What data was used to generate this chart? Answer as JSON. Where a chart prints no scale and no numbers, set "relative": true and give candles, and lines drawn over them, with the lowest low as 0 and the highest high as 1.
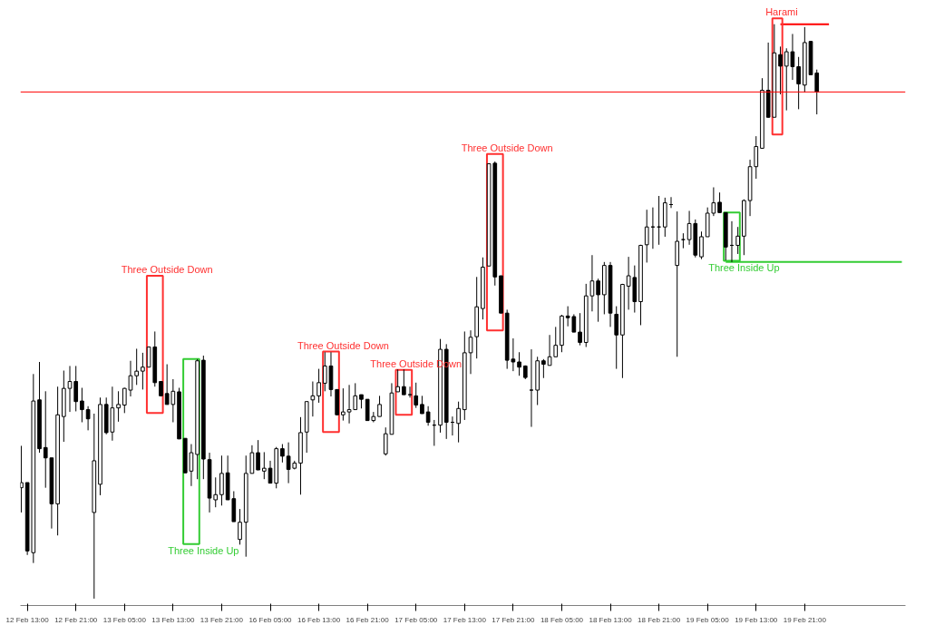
{
  "chart_data": {
    "type": "candlestick",
    "relative": true,
    "categories": [
      null,
      "12 Feb 13:00",
      null,
      null,
      null,
      null,
      null,
      null,
      null,
      "12 Feb 21:00",
      null,
      null,
      null,
      null,
      null,
      null,
      null,
      "13 Feb 05:00",
      null,
      null,
      null,
      null,
      null,
      null,
      null,
      "13 Feb 13:00",
      null,
      null,
      null,
      null,
      null,
      null,
      null,
      "13 Feb 21:00",
      null,
      null,
      null,
      null,
      null,
      null,
      null,
      "16 Feb 05:00",
      null,
      null,
      null,
      null,
      null,
      null,
      null,
      "16 Feb 13:00",
      null,
      null,
      null,
      null,
      null,
      null,
      null,
      "16 Feb 21:00",
      null,
      null,
      null,
      null,
      null,
      null,
      null,
      "17 Feb 05:00",
      null,
      null,
      null,
      null,
      null,
      null,
      null,
      "17 Feb 13:00",
      null,
      null,
      null,
      null,
      null,
      null,
      null,
      "17 Feb 21:00",
      null,
      null,
      null,
      null,
      null,
      null,
      null,
      "18 Feb 05:00",
      null,
      null,
      null,
      null,
      null,
      null,
      null,
      "18 Feb 13:00",
      null,
      null,
      null,
      null,
      null,
      null,
      null,
      "18 Feb 21:00",
      null,
      null,
      null,
      null,
      null,
      null,
      null,
      "19 Feb 05:00",
      null,
      null,
      null,
      null,
      null,
      null,
      null,
      "19 Feb 13:00",
      null,
      null,
      null,
      null,
      null,
      null,
      null,
      "19 Feb 21:00",
      null,
      null,
      null,
      null,
      null,
      null,
      null,
      null,
      null,
      null,
      null,
      null,
      null,
      null,
      null,
      null
    ],
    "ohlc": [
      [
        0.193,
        0.266,
        0.15,
        0.202
      ],
      [
        0.202,
        0.202,
        0.076,
        0.083
      ],
      [
        0.08,
        0.391,
        0.062,
        0.344
      ],
      [
        0.346,
        0.412,
        0.254,
        0.261
      ],
      [
        0.263,
        0.361,
        0.193,
        0.245
      ],
      [
        0.245,
        0.245,
        0.122,
        0.165
      ],
      [
        0.165,
        0.369,
        0.11,
        0.32
      ],
      [
        0.317,
        0.397,
        0.273,
        0.366
      ],
      [
        0.366,
        0.405,
        0.325,
        0.378
      ],
      [
        0.378,
        0.405,
        0.326,
        0.343
      ],
      [
        0.344,
        0.367,
        0.307,
        0.329
      ],
      [
        0.329,
        0.335,
        0.293,
        0.313
      ],
      [
        0.15,
        0.322,
        0.0,
        0.24
      ],
      [
        0.199,
        0.35,
        0.18,
        0.338
      ],
      [
        0.338,
        0.35,
        0.286,
        0.289
      ],
      [
        0.29,
        0.369,
        0.275,
        0.332
      ],
      [
        0.332,
        0.361,
        0.308,
        0.338
      ],
      [
        0.337,
        0.367,
        0.323,
        0.366
      ],
      [
        0.363,
        0.414,
        0.352,
        0.388
      ],
      [
        0.388,
        0.435,
        0.372,
        0.396
      ],
      [
        0.396,
        0.428,
        0.364,
        0.403
      ],
      [
        0.403,
        0.438,
        0.403,
        0.438
      ],
      [
        0.438,
        0.465,
        0.369,
        0.376
      ],
      [
        0.378,
        0.378,
        0.353,
        0.353
      ],
      [
        0.357,
        0.408,
        0.338,
        0.338
      ],
      [
        0.338,
        0.382,
        0.307,
        0.361
      ],
      [
        0.36,
        0.367,
        0.278,
        0.278
      ],
      [
        0.279,
        0.279,
        0.219,
        0.219
      ],
      [
        0.222,
        0.269,
        0.196,
        0.254
      ],
      [
        0.251,
        0.417,
        0.208,
        0.414
      ],
      [
        0.415,
        0.423,
        0.208,
        0.243
      ],
      [
        0.242,
        0.254,
        0.15,
        0.175
      ],
      [
        0.172,
        0.211,
        0.159,
        0.181
      ],
      [
        0.181,
        0.249,
        0.162,
        0.218
      ],
      [
        0.219,
        0.249,
        0.172,
        0.172
      ],
      [
        0.174,
        0.187,
        0.134,
        0.134
      ],
      [
        0.103,
        0.156,
        0.094,
        0.133
      ],
      [
        0.133,
        0.249,
        0.073,
        0.218
      ],
      [
        0.218,
        0.267,
        0.218,
        0.254
      ],
      [
        0.254,
        0.276,
        0.224,
        0.224
      ],
      [
        0.222,
        0.255,
        0.208,
        0.227
      ],
      [
        0.227,
        0.24,
        0.201,
        0.201
      ],
      [
        0.201,
        0.264,
        0.192,
        0.261
      ],
      [
        0.261,
        0.269,
        0.237,
        0.248
      ],
      [
        0.248,
        0.272,
        0.201,
        0.225
      ],
      [
        0.227,
        0.24,
        0.225,
        0.236
      ],
      [
        0.236,
        0.316,
        0.181,
        0.289
      ],
      [
        0.29,
        0.343,
        0.254,
        0.343
      ],
      [
        0.346,
        0.378,
        0.317,
        0.353
      ],
      [
        0.353,
        0.4,
        0.341,
        0.376
      ],
      [
        0.375,
        0.429,
        0.361,
        0.405
      ],
      [
        0.405,
        0.429,
        0.352,
        0.364
      ],
      [
        0.364,
        0.364,
        0.32,
        0.32
      ],
      [
        0.32,
        0.366,
        0.31,
        0.325
      ],
      [
        0.325,
        0.372,
        0.305,
        0.329
      ],
      [
        0.329,
        0.375,
        0.329,
        0.353
      ],
      [
        0.355,
        0.355,
        0.331,
        0.347
      ],
      [
        0.347,
        0.347,
        0.31,
        0.31
      ],
      [
        0.31,
        0.325,
        0.307,
        0.317
      ],
      [
        0.317,
        0.353,
        0.317,
        0.338
      ],
      [
        0.252,
        0.298,
        0.249,
        0.287
      ],
      [
        0.286,
        0.375,
        0.286,
        0.358
      ],
      [
        0.36,
        0.399,
        0.36,
        0.369
      ],
      [
        0.369,
        0.399,
        0.355,
        0.355
      ],
      [
        0.355,
        0.369,
        0.35,
        0.355
      ],
      [
        0.353,
        0.376,
        0.332,
        0.337
      ],
      [
        0.338,
        0.353,
        0.322,
        0.322
      ],
      [
        0.325,
        0.335,
        0.301,
        0.307
      ],
      [
        0.302,
        0.311,
        0.266,
        0.302
      ],
      [
        0.302,
        0.452,
        0.289,
        0.434
      ],
      [
        0.434,
        0.443,
        0.278,
        0.307
      ],
      [
        0.307,
        0.317,
        0.284,
        0.307
      ],
      [
        0.305,
        0.343,
        0.272,
        0.331
      ],
      [
        0.329,
        0.465,
        0.311,
        0.428
      ],
      [
        0.428,
        0.467,
        0.391,
        0.455
      ],
      [
        0.456,
        0.56,
        0.418,
        0.508
      ],
      [
        0.505,
        0.594,
        0.486,
        0.577
      ],
      [
        0.579,
        0.757,
        0.579,
        0.757
      ],
      [
        0.758,
        0.761,
        0.545,
        0.56
      ],
      [
        0.562,
        0.562,
        0.497,
        0.497
      ],
      [
        0.497,
        0.503,
        0.4,
        0.415
      ],
      [
        0.417,
        0.453,
        0.396,
        0.412
      ],
      [
        0.412,
        0.429,
        0.388,
        0.403
      ],
      [
        0.405,
        0.406,
        0.382,
        0.385
      ],
      [
        0.363,
        0.434,
        0.299,
        0.363
      ],
      [
        0.363,
        0.421,
        0.337,
        0.414
      ],
      [
        0.414,
        0.417,
        0.384,
        0.408
      ],
      [
        0.406,
        0.459,
        0.406,
        0.421
      ],
      [
        0.421,
        0.473,
        0.421,
        0.441
      ],
      [
        0.441,
        0.494,
        0.429,
        0.492
      ],
      [
        0.492,
        0.509,
        0.474,
        0.489
      ],
      [
        0.491,
        0.495,
        0.464,
        0.464
      ],
      [
        0.464,
        0.497,
        0.441,
        0.446
      ],
      [
        0.446,
        0.548,
        0.438,
        0.527
      ],
      [
        0.527,
        0.598,
        0.5,
        0.553
      ],
      [
        0.553,
        0.557,
        0.482,
        0.529
      ],
      [
        0.529,
        0.586,
        0.495,
        0.58
      ],
      [
        0.58,
        0.586,
        0.473,
        0.497
      ],
      [
        0.495,
        0.509,
        0.4,
        0.459
      ],
      [
        0.459,
        0.548,
        0.384,
        0.547
      ],
      [
        0.544,
        0.595,
        0.503,
        0.562
      ],
      [
        0.559,
        0.58,
        0.498,
        0.517
      ],
      [
        0.517,
        0.616,
        0.476,
        0.615
      ],
      [
        0.616,
        0.677,
        0.585,
        0.647
      ],
      [
        0.647,
        0.681,
        0.609,
        0.647
      ],
      [
        0.647,
        0.701,
        0.616,
        0.647
      ],
      [
        0.647,
        0.698,
        0.63,
        0.689
      ],
      [
        0.686,
        0.699,
        0.68,
        0.686
      ],
      [
        0.58,
        0.674,
        0.421,
        0.622
      ],
      [
        0.625,
        0.636,
        0.61,
        0.625
      ],
      [
        0.625,
        0.675,
        0.616,
        0.653
      ],
      [
        0.653,
        0.66,
        0.594,
        0.598
      ],
      [
        0.595,
        0.639,
        0.591,
        0.63
      ],
      [
        0.63,
        0.681,
        0.63,
        0.671
      ],
      [
        0.671,
        0.716,
        0.666,
        0.689
      ],
      [
        0.69,
        0.707,
        0.672,
        0.672
      ],
      [
        0.672,
        0.672,
        0.589,
        0.612
      ],
      [
        0.615,
        0.657,
        0.586,
        0.615
      ],
      [
        0.615,
        0.647,
        0.6,
        0.631
      ],
      [
        0.631,
        0.695,
        0.598,
        0.693
      ],
      [
        0.693,
        0.764,
        0.666,
        0.752
      ],
      [
        0.752,
        0.805,
        0.731,
        0.787
      ],
      [
        0.784,
        0.906,
        0.784,
        0.885
      ],
      [
        0.885,
        0.968,
        0.837,
        0.838
      ],
      [
        0.838,
        1.0,
        0.838,
        0.95
      ],
      [
        0.947,
        0.961,
        0.878,
        0.927
      ],
      [
        0.927,
        0.958,
        0.85,
        0.952
      ],
      [
        0.952,
        0.983,
        0.903,
        0.926
      ],
      [
        0.926,
        0.943,
        0.852,
        0.896
      ],
      [
        0.894,
        0.995,
        0.881,
        0.968
      ],
      [
        0.97,
        0.971,
        0.912,
        0.912
      ],
      [
        0.915,
        0.921,
        0.843,
        0.882
      ],
      null,
      null,
      null,
      null,
      null,
      null,
      null,
      null,
      null,
      null,
      null,
      null,
      null,
      null
    ],
    "series": [
      {
        "type": "line",
        "color": "#33cc33",
        "values": [
          null,
          null,
          null,
          null,
          null,
          null,
          null,
          null,
          null,
          null,
          null,
          null,
          null,
          null,
          null,
          null,
          null,
          null,
          null,
          null,
          null,
          null,
          null,
          null,
          null,
          null,
          null,
          null,
          null,
          null,
          null,
          null,
          null,
          null,
          null,
          null,
          null,
          null,
          null,
          null,
          null,
          null,
          null,
          null,
          null,
          null,
          null,
          null,
          null,
          null,
          null,
          null,
          null,
          null,
          null,
          null,
          null,
          null,
          null,
          null,
          null,
          null,
          null,
          null,
          null,
          null,
          null,
          null,
          null,
          null,
          null,
          null,
          null,
          null,
          null,
          null,
          null,
          null,
          null,
          null,
          null,
          null,
          null,
          null,
          null,
          null,
          null,
          null,
          null,
          null,
          null,
          null,
          null,
          null,
          null,
          null,
          null,
          null,
          null,
          null,
          null,
          null,
          null,
          null,
          null,
          null,
          null,
          null,
          null,
          null,
          null,
          null,
          null,
          null,
          null,
          null,
          0.586,
          0.586,
          0.586,
          0.586,
          0.586,
          0.586,
          0.586,
          0.586,
          0.586,
          0.586,
          0.586,
          0.586,
          0.586,
          0.586,
          0.586,
          0.586,
          0.586,
          0.586,
          0.586,
          0.586,
          0.586,
          0.586,
          0.586,
          0.586,
          0.586,
          0.586,
          0.586,
          0.586,
          0.586,
          0.586
        ]
      },
      {
        "type": "line",
        "color": "#ff0000",
        "values": [
          null,
          null,
          null,
          null,
          null,
          null,
          null,
          null,
          null,
          null,
          null,
          null,
          null,
          null,
          null,
          null,
          null,
          null,
          null,
          null,
          null,
          null,
          null,
          null,
          null,
          null,
          null,
          null,
          null,
          null,
          null,
          null,
          null,
          null,
          null,
          null,
          null,
          null,
          null,
          null,
          null,
          null,
          null,
          null,
          null,
          null,
          null,
          null,
          null,
          null,
          null,
          null,
          null,
          null,
          null,
          null,
          null,
          null,
          null,
          null,
          null,
          null,
          null,
          null,
          null,
          null,
          null,
          null,
          null,
          null,
          null,
          null,
          null,
          null,
          null,
          null,
          null,
          null,
          null,
          null,
          null,
          null,
          null,
          null,
          null,
          null,
          null,
          null,
          null,
          null,
          null,
          null,
          null,
          null,
          null,
          null,
          null,
          null,
          null,
          null,
          null,
          null,
          null,
          null,
          null,
          null,
          null,
          null,
          null,
          null,
          null,
          null,
          null,
          null,
          null,
          null,
          null,
          null,
          null,
          null,
          null,
          null,
          null,
          null,
          null,
          1.0,
          1.0,
          1.0,
          1.0,
          1.0,
          1.0,
          1.0,
          1.0,
          1.0,
          null,
          null,
          null,
          null,
          null,
          null,
          null,
          null,
          null,
          null,
          null,
          null
        ]
      }
    ],
    "ref_lines": [
      {
        "axis": "y",
        "value": 0.882,
        "color": "#ff0000"
      }
    ],
    "annotations": [
      "Three Outside Down",
      "Three Inside Up",
      "Three Outside Down",
      "Three Outside Down",
      "Three Outside Down",
      "Three Inside Up",
      "Harami"
    ],
    "grid": false
  }
}
